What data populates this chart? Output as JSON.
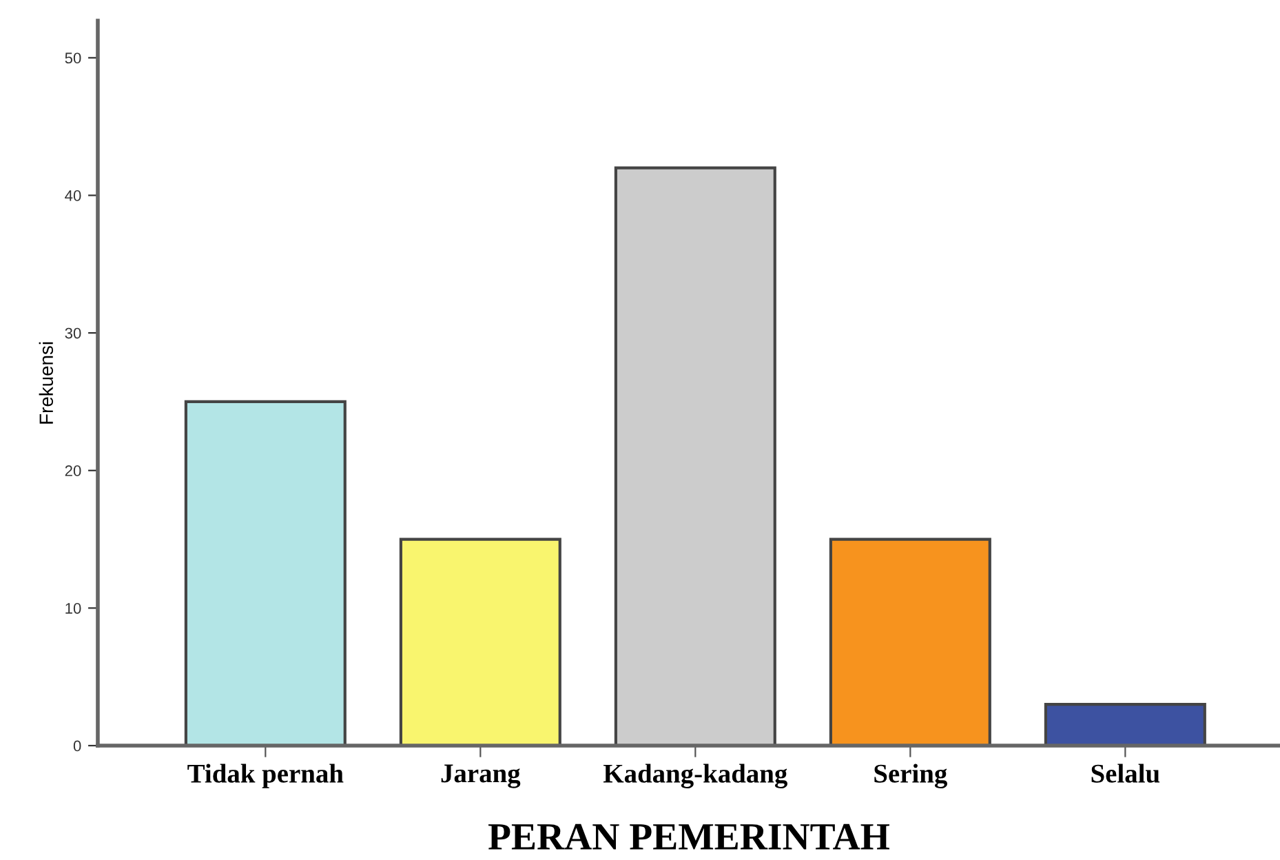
{
  "chart_data": {
    "type": "bar",
    "xlabel": "PERAN PEMERINTAH",
    "ylabel": "Frekuensi",
    "categories": [
      "Tidak pernah",
      "Jarang",
      "Kadang-kadang",
      "Sering",
      "Selalu"
    ],
    "values": [
      25,
      15,
      42,
      15,
      3
    ],
    "colors": [
      "#b3e5e6",
      "#f9f56e",
      "#cccccc",
      "#f7931e",
      "#3d52a1"
    ],
    "ylim": [
      0,
      52.7
    ],
    "yticks": [
      0,
      10,
      20,
      30,
      40,
      50
    ],
    "grid": false,
    "legend": false
  }
}
